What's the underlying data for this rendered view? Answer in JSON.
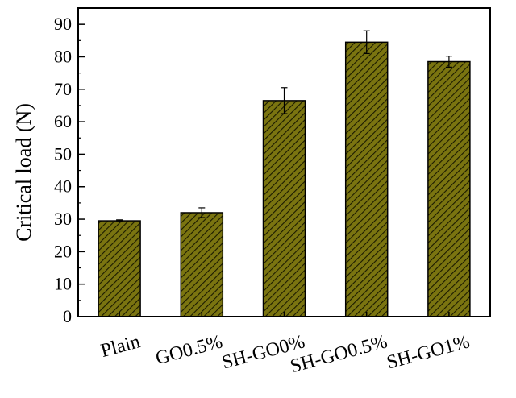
{
  "chart_data": {
    "type": "bar",
    "title": "",
    "xlabel": "",
    "ylabel": "Critical load (N)",
    "ylim": [
      0,
      95
    ],
    "yticks": [
      0,
      10,
      20,
      30,
      40,
      50,
      60,
      70,
      80,
      90
    ],
    "categories": [
      "Plain",
      "GO0.5%",
      "SH-GO0%",
      "SH-GO0.5%",
      "SH-GO1%"
    ],
    "values": [
      29.5,
      32.0,
      66.5,
      84.5,
      78.5
    ],
    "errors": [
      0.3,
      1.5,
      4.0,
      3.5,
      1.7
    ],
    "bar_fill": "#7a7410",
    "hatch_color": "#1a1a00",
    "grid": false,
    "legend": "none"
  }
}
